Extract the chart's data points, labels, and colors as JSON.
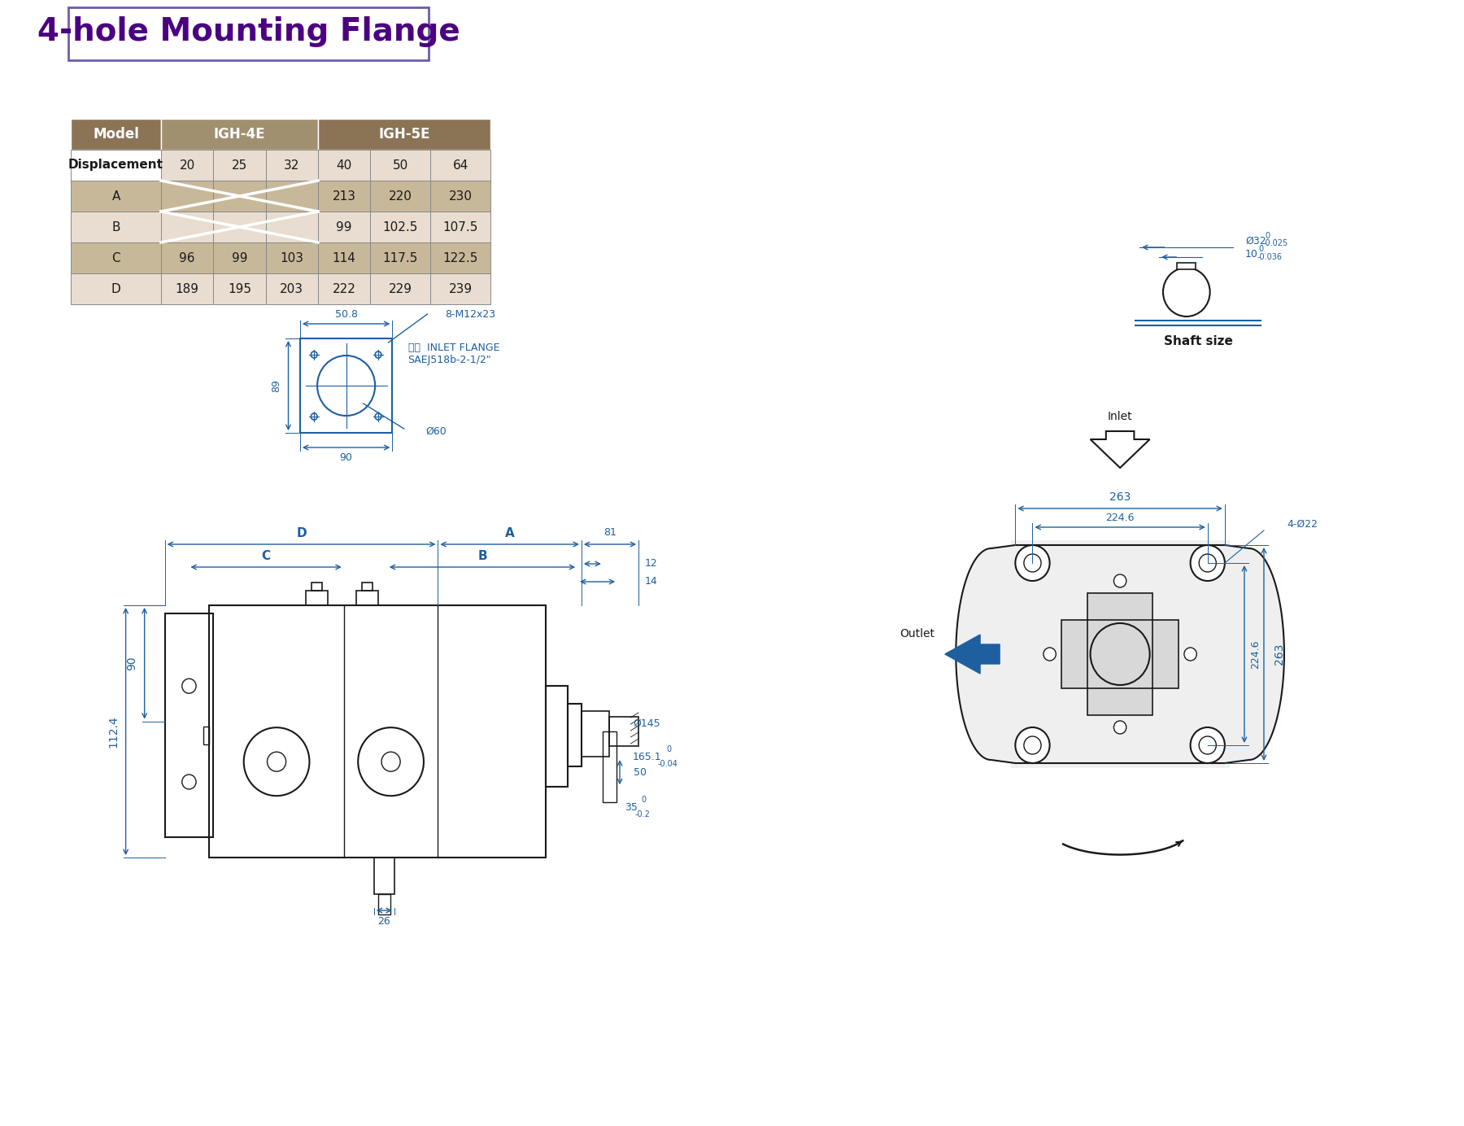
{
  "title": "4-hole Mounting Flange",
  "title_color": "#4B0082",
  "bg_color": "#FFFFFF",
  "table": {
    "headers": [
      "Model",
      "IGH-4E",
      "IGH-5E"
    ],
    "subheaders": [
      "Displacement",
      "20",
      "25",
      "32",
      "40",
      "50",
      "64"
    ],
    "rows": [
      [
        "A",
        null,
        null,
        null,
        "213",
        "220",
        "230"
      ],
      [
        "B",
        null,
        null,
        null,
        "99",
        "102.5",
        "107.5"
      ],
      [
        "C",
        "96",
        "99",
        "103",
        "114",
        "117.5",
        "122.5"
      ],
      [
        "D",
        "189",
        "195",
        "203",
        "222",
        "229",
        "239"
      ]
    ],
    "header_bg": "#8B7355",
    "header_fg": "#FFFFFF",
    "row_bg_dark": "#C8B89A",
    "row_bg_light": "#E8DDD0",
    "cross_color": "#FFFFFF",
    "igh4e_bg": "#A09070",
    "igh5e_bg": "#8B7355"
  },
  "dim_color": "#1E5FA0",
  "line_color": "#1A1A1A"
}
